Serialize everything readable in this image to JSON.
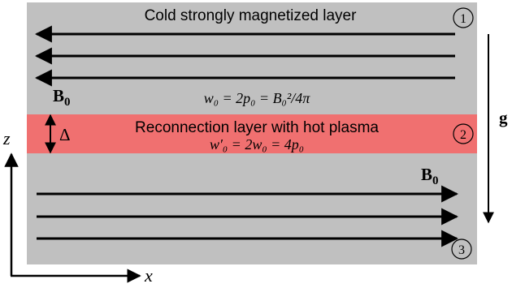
{
  "colors": {
    "background_layer": "#c0c0c0",
    "reconnection_layer": "#f07070",
    "arrow": "#000000",
    "text": "#000000"
  },
  "labels": {
    "top_title": "Cold strongly magnetized layer",
    "middle_title": "Reconnection layer with hot plasma",
    "top_equation": "w₀ = 2p₀ = B₀²/4π",
    "middle_equation": "w′₀ = 2w₀ = 4p₀",
    "field_label_top": "B",
    "field_label_top_sub": "0",
    "field_label_bottom": "B",
    "field_label_bottom_sub": "0",
    "thickness_label": "Δ",
    "gravity_label": "g",
    "region_1": "1",
    "region_2": "2",
    "region_3": "3",
    "axis_z": "z",
    "axis_x": "x"
  },
  "field_directions": {
    "top_layer": "left",
    "bottom_layer": "right",
    "gravity": "down"
  }
}
